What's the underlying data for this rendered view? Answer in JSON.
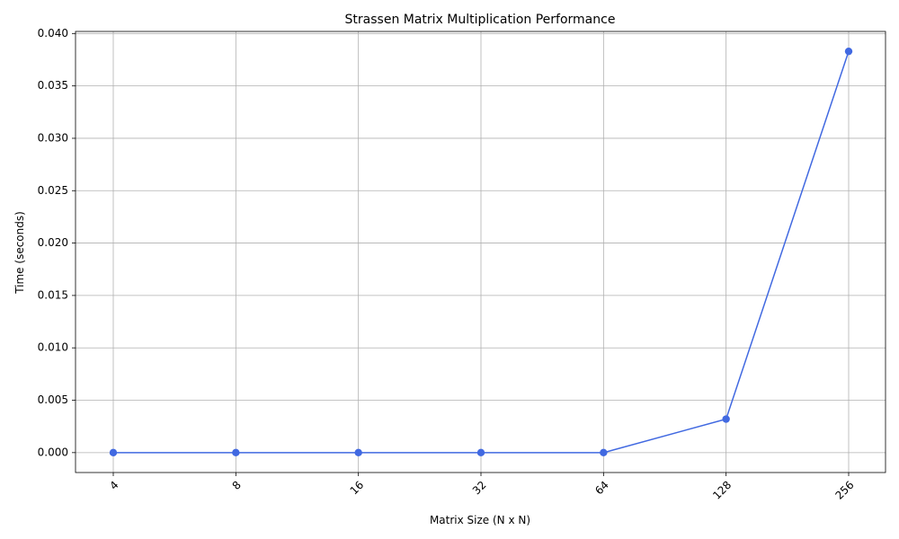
{
  "colors": {
    "series": "#4169e1",
    "grid": "#b0b0b0",
    "axis": "#000000",
    "background": "#ffffff"
  },
  "chart_data": {
    "type": "line",
    "title": "Strassen Matrix Multiplication Performance",
    "xlabel": "Matrix Size (N x N)",
    "ylabel": "Time (seconds)",
    "x_scale": "categorical",
    "categories": [
      "4",
      "8",
      "16",
      "32",
      "64",
      "128",
      "256"
    ],
    "series": [
      {
        "values": [
          0.0,
          0.0,
          0.0,
          0.0,
          0.0,
          0.0032,
          0.0383
        ],
        "marker": "circle",
        "color": "#4169e1"
      }
    ],
    "ylim": [
      -0.0019,
      0.0402
    ],
    "yticks": [
      0.0,
      0.005,
      0.01,
      0.015,
      0.02,
      0.025,
      0.03,
      0.035,
      0.04
    ],
    "ytick_labels": [
      "0.000",
      "0.005",
      "0.010",
      "0.015",
      "0.020",
      "0.025",
      "0.030",
      "0.035",
      "0.040"
    ],
    "x_tick_rotation": "45 degrees",
    "grid": true,
    "legend": false
  }
}
